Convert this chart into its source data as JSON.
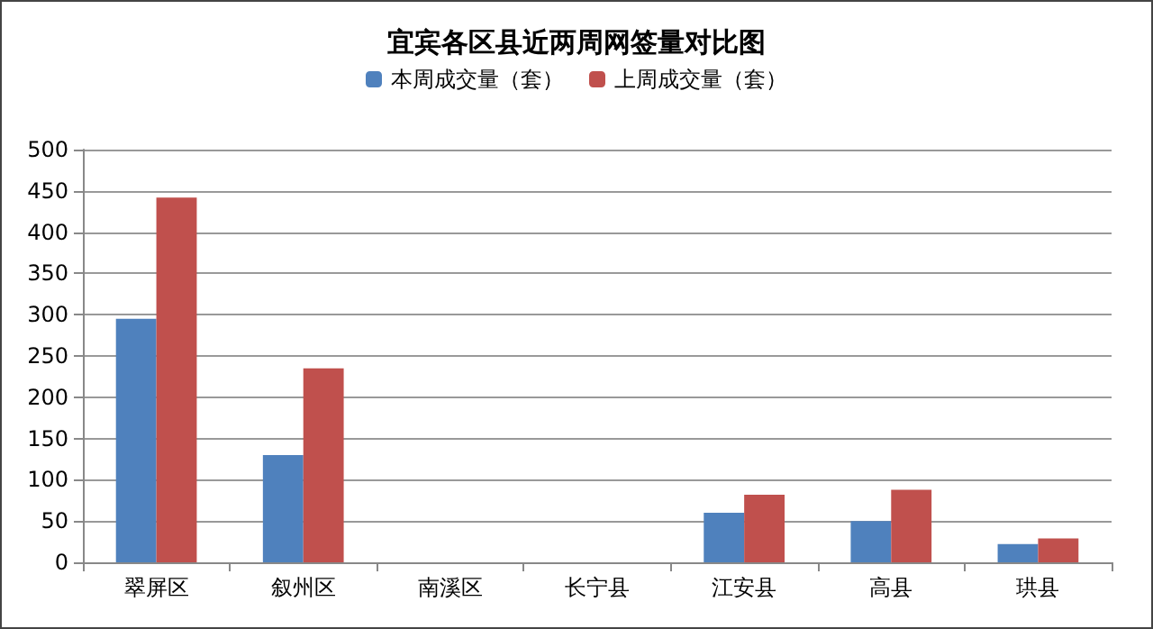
{
  "chart_data": {
    "type": "bar",
    "title": "宜宾各区县近两周网签量对比图",
    "categories": [
      "翠屏区",
      "叙州区",
      "南溪区",
      "长宁县",
      "江安县",
      "高县",
      "珙县"
    ],
    "series": [
      {
        "name": "本周成交量（套）",
        "color": "#4f81bd",
        "values": [
          295,
          130,
          0,
          0,
          60,
          50,
          22
        ]
      },
      {
        "name": "上周成交量（套）",
        "color": "#c0504d",
        "values": [
          442,
          235,
          0,
          0,
          82,
          88,
          29
        ]
      }
    ],
    "ylim": [
      0,
      500
    ],
    "yticks": [
      0,
      50,
      100,
      150,
      200,
      250,
      300,
      350,
      400,
      450,
      500
    ],
    "grid": "y",
    "legend": "top"
  }
}
